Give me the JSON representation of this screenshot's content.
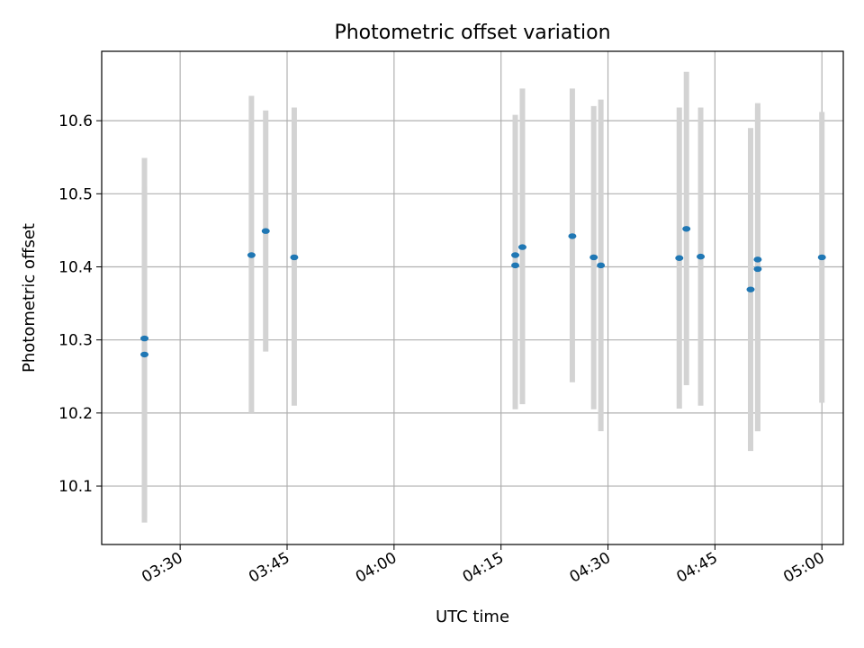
{
  "chart_data": {
    "type": "scatter",
    "title": "Photometric offset variation",
    "xlabel": "UTC time",
    "ylabel": "Photometric offset",
    "grid": true,
    "x_axis_type": "time",
    "xlim": [
      "03:19",
      "05:03"
    ],
    "ylim": [
      10.02,
      10.695
    ],
    "x_ticks": [
      "03:30",
      "03:45",
      "04:00",
      "04:15",
      "04:30",
      "04:45",
      "05:00"
    ],
    "y_ticks": [
      10.1,
      10.2,
      10.3,
      10.4,
      10.5,
      10.6
    ],
    "y_tick_labels": [
      "10.1",
      "10.2",
      "10.3",
      "10.4",
      "10.5",
      "10.6"
    ],
    "x": [
      "03:25",
      "03:25",
      "03:40",
      "03:42",
      "03:46",
      "04:17",
      "04:17",
      "04:18",
      "04:25",
      "04:28",
      "04:29",
      "04:40",
      "04:41",
      "04:43",
      "04:50",
      "04:51",
      "04:51",
      "05:00"
    ],
    "series": [
      {
        "values": [
          10.28,
          10.302,
          10.416,
          10.449,
          10.413,
          10.416,
          10.402,
          10.427,
          10.442,
          10.413,
          10.402,
          10.412,
          10.452,
          10.414,
          10.369,
          10.41,
          10.397,
          10.413
        ],
        "err_low": [
          10.05,
          10.057,
          10.2,
          10.284,
          10.21,
          10.225,
          10.205,
          10.212,
          10.242,
          10.205,
          10.175,
          10.206,
          10.238,
          10.21,
          10.148,
          10.175,
          10.175,
          10.214
        ],
        "err_high": [
          10.51,
          10.549,
          10.634,
          10.614,
          10.618,
          10.608,
          10.599,
          10.644,
          10.644,
          10.62,
          10.629,
          10.618,
          10.667,
          10.618,
          10.59,
          10.624,
          10.618,
          10.612
        ]
      }
    ],
    "colors": {
      "marker": "#1f77b4",
      "errorbar": "#d3d3d3",
      "grid": "#b0b0b0"
    }
  }
}
